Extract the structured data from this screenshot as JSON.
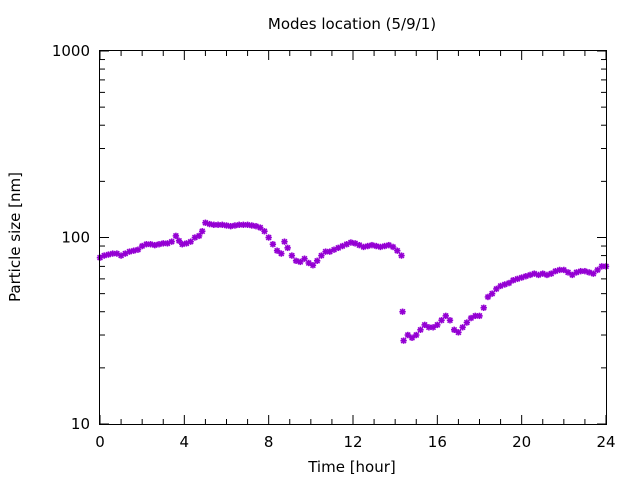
{
  "chart_data": {
    "type": "scatter",
    "title": "Modes location (5/9/1)",
    "xlabel": "Time [hour]",
    "ylabel": "Particle size [nm]",
    "xlim": [
      0,
      24
    ],
    "ylim": [
      10,
      1000
    ],
    "yscale": "log",
    "grid": false,
    "legend": "none",
    "x_ticks": [
      0,
      4,
      8,
      12,
      16,
      20,
      24
    ],
    "x_tick_labels": [
      "0",
      "4",
      "8",
      "12",
      "16",
      "20",
      "24"
    ],
    "y_ticks": [
      10,
      100,
      1000
    ],
    "y_tick_labels": [
      "10",
      "100",
      "1000"
    ],
    "marker_color": "#9400d3",
    "series": [
      {
        "points": [
          [
            0.0,
            78
          ],
          [
            0.2,
            80
          ],
          [
            0.4,
            81
          ],
          [
            0.6,
            82
          ],
          [
            0.8,
            82
          ],
          [
            1.0,
            80
          ],
          [
            1.2,
            82
          ],
          [
            1.4,
            84
          ],
          [
            1.6,
            85
          ],
          [
            1.8,
            86
          ],
          [
            2.0,
            90
          ],
          [
            2.2,
            92
          ],
          [
            2.4,
            92
          ],
          [
            2.6,
            91
          ],
          [
            2.8,
            92
          ],
          [
            3.0,
            93
          ],
          [
            3.2,
            93
          ],
          [
            3.4,
            95
          ],
          [
            3.6,
            102
          ],
          [
            3.75,
            96
          ],
          [
            3.9,
            92
          ],
          [
            4.1,
            93
          ],
          [
            4.3,
            95
          ],
          [
            4.5,
            100
          ],
          [
            4.7,
            102
          ],
          [
            4.85,
            108
          ],
          [
            5.0,
            120
          ],
          [
            5.2,
            118
          ],
          [
            5.4,
            117
          ],
          [
            5.6,
            117
          ],
          [
            5.8,
            117
          ],
          [
            6.0,
            116
          ],
          [
            6.2,
            115
          ],
          [
            6.4,
            116
          ],
          [
            6.6,
            117
          ],
          [
            6.8,
            117
          ],
          [
            7.0,
            117
          ],
          [
            7.2,
            116
          ],
          [
            7.4,
            115
          ],
          [
            7.6,
            113
          ],
          [
            7.8,
            108
          ],
          [
            8.0,
            100
          ],
          [
            8.2,
            92
          ],
          [
            8.4,
            85
          ],
          [
            8.6,
            82
          ],
          [
            8.75,
            95
          ],
          [
            8.9,
            88
          ],
          [
            9.1,
            80
          ],
          [
            9.3,
            75
          ],
          [
            9.5,
            74
          ],
          [
            9.7,
            77
          ],
          [
            9.9,
            73
          ],
          [
            10.1,
            71
          ],
          [
            10.3,
            75
          ],
          [
            10.5,
            80
          ],
          [
            10.7,
            84
          ],
          [
            10.9,
            84
          ],
          [
            11.1,
            86
          ],
          [
            11.3,
            88
          ],
          [
            11.5,
            90
          ],
          [
            11.7,
            92
          ],
          [
            11.9,
            94
          ],
          [
            12.1,
            93
          ],
          [
            12.3,
            91
          ],
          [
            12.5,
            89
          ],
          [
            12.7,
            90
          ],
          [
            12.9,
            91
          ],
          [
            13.1,
            90
          ],
          [
            13.3,
            89
          ],
          [
            13.5,
            90
          ],
          [
            13.7,
            91
          ],
          [
            13.9,
            89
          ],
          [
            14.1,
            85
          ],
          [
            14.3,
            80
          ],
          [
            14.35,
            40
          ],
          [
            14.4,
            28
          ],
          [
            14.6,
            30
          ],
          [
            14.8,
            29
          ],
          [
            15.0,
            30
          ],
          [
            15.2,
            32
          ],
          [
            15.4,
            34
          ],
          [
            15.6,
            33
          ],
          [
            15.8,
            33
          ],
          [
            16.0,
            34
          ],
          [
            16.2,
            36
          ],
          [
            16.4,
            38
          ],
          [
            16.6,
            36
          ],
          [
            16.8,
            32
          ],
          [
            17.0,
            31
          ],
          [
            17.2,
            33
          ],
          [
            17.4,
            35
          ],
          [
            17.6,
            37
          ],
          [
            17.8,
            38
          ],
          [
            18.0,
            38
          ],
          [
            18.2,
            42
          ],
          [
            18.4,
            48
          ],
          [
            18.6,
            50
          ],
          [
            18.8,
            53
          ],
          [
            19.0,
            55
          ],
          [
            19.2,
            56
          ],
          [
            19.4,
            57
          ],
          [
            19.6,
            59
          ],
          [
            19.8,
            60
          ],
          [
            20.0,
            61
          ],
          [
            20.2,
            62
          ],
          [
            20.4,
            63
          ],
          [
            20.6,
            64
          ],
          [
            20.8,
            63
          ],
          [
            21.0,
            64
          ],
          [
            21.2,
            63
          ],
          [
            21.4,
            64
          ],
          [
            21.6,
            66
          ],
          [
            21.8,
            67
          ],
          [
            22.0,
            67
          ],
          [
            22.2,
            65
          ],
          [
            22.4,
            63
          ],
          [
            22.6,
            65
          ],
          [
            22.8,
            66
          ],
          [
            23.0,
            66
          ],
          [
            23.2,
            65
          ],
          [
            23.4,
            64
          ],
          [
            23.6,
            67
          ],
          [
            23.8,
            70
          ],
          [
            24.0,
            70
          ]
        ]
      }
    ]
  }
}
